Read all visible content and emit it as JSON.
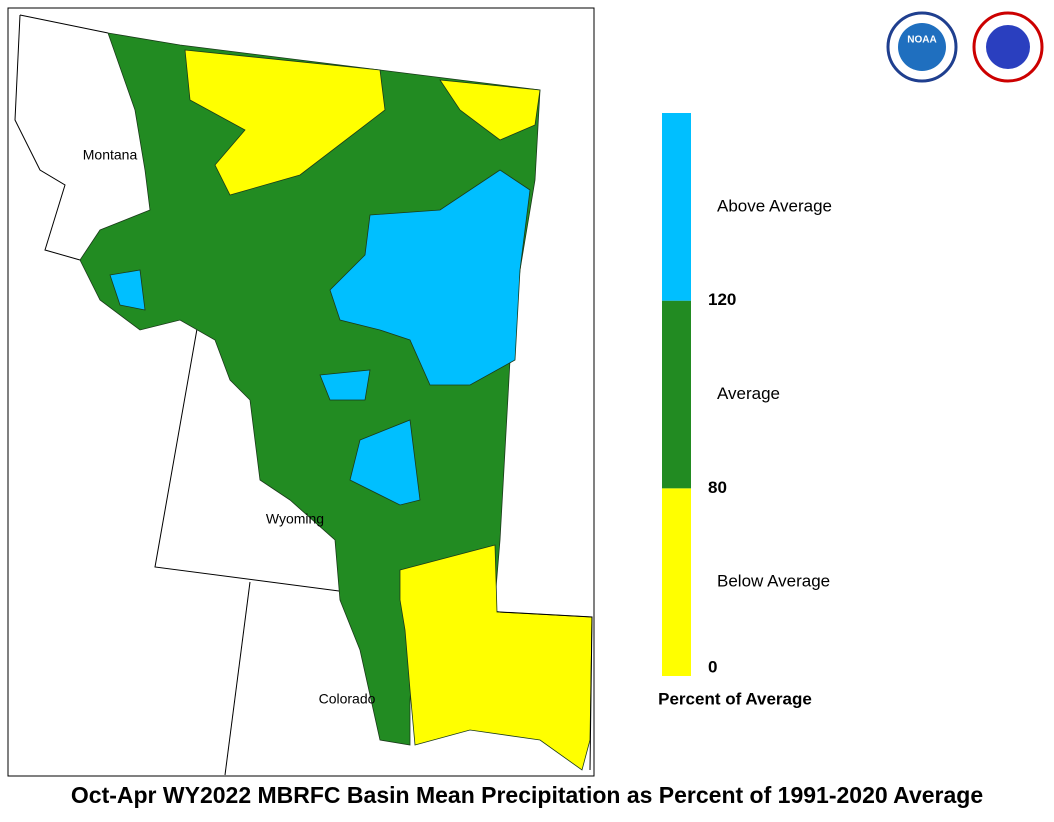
{
  "map": {
    "labels": [
      "Montana",
      "Wyoming",
      "Colorado"
    ]
  },
  "legend": {
    "title": "Percent of Average",
    "classes": [
      {
        "label": "Below Average",
        "color": "#ffff00"
      },
      {
        "label": "Average",
        "color": "#228b22"
      },
      {
        "label": "Above Average",
        "color": "#00bfff"
      }
    ],
    "ticks": [
      0,
      80,
      120
    ]
  },
  "logos": {
    "noaa": "NOAA"
  },
  "footer": {
    "title": "Oct-Apr WY2022 MBRFC Basin Mean Precipitation as Percent of 1991-2020 Average"
  }
}
